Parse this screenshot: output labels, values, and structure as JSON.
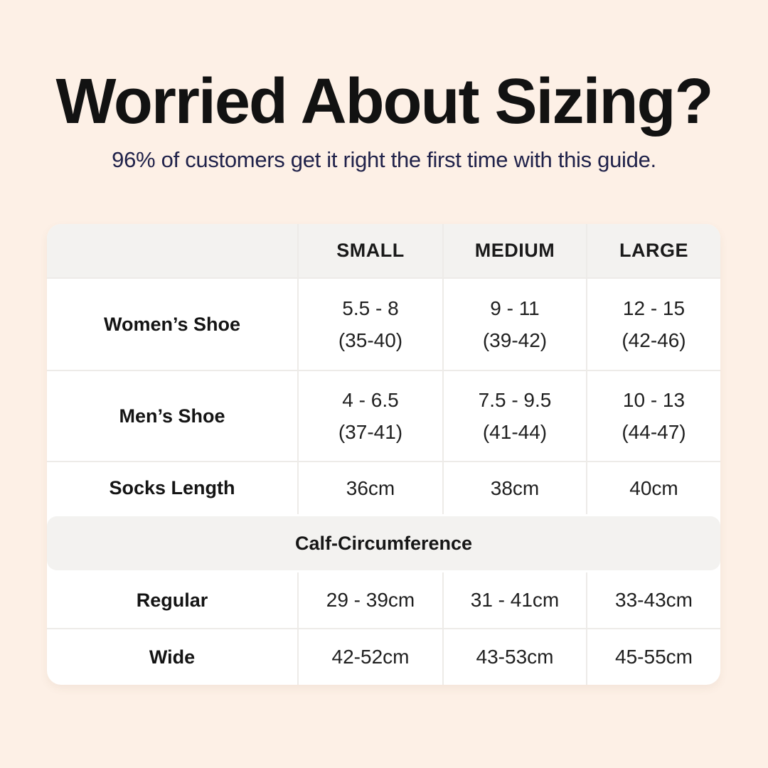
{
  "page": {
    "title": "Worried About Sizing?",
    "subtitle": "96% of customers get it right the first time with this guide.",
    "colors": {
      "background": "#fdf0e6",
      "title": "#121212",
      "subtitle": "#20224a",
      "table_background": "#ffffff",
      "header_band_background": "#f3f2f0",
      "grid_line": "#edebe8"
    }
  },
  "table": {
    "headers": [
      {
        "label": ""
      },
      {
        "label": "SMALL"
      },
      {
        "label": "MEDIUM"
      },
      {
        "label": "LARGE"
      }
    ],
    "shoe_rows": [
      {
        "label": "Women’s Shoe",
        "cells": [
          {
            "line1": "5.5 - 8",
            "line2": "(35-40)"
          },
          {
            "line1": "9 - 11",
            "line2": "(39-42)"
          },
          {
            "line1": "12 - 15",
            "line2": "(42-46)"
          }
        ]
      },
      {
        "label": "Men’s Shoe",
        "cells": [
          {
            "line1": "4 - 6.5",
            "line2": "(37-41)"
          },
          {
            "line1": "7.5 - 9.5",
            "line2": "(41-44)"
          },
          {
            "line1": "10 - 13",
            "line2": "(44-47)"
          }
        ]
      },
      {
        "label": "Socks Length",
        "cells": [
          {
            "line1": "36cm"
          },
          {
            "line1": "38cm"
          },
          {
            "line1": "40cm"
          }
        ]
      }
    ],
    "section_header": "Calf-Circumference",
    "calf_rows": [
      {
        "label": "Regular",
        "cells": [
          {
            "line1": "29 - 39cm"
          },
          {
            "line1": "31 - 41cm"
          },
          {
            "line1": "33-43cm"
          }
        ]
      },
      {
        "label": "Wide",
        "cells": [
          {
            "line1": "42-52cm"
          },
          {
            "line1": "43-53cm"
          },
          {
            "line1": "45-55cm"
          }
        ]
      }
    ]
  },
  "chart_data": {
    "type": "table",
    "title": "Worried About Sizing?",
    "subtitle": "96% of customers get it right the first time with this guide.",
    "columns": [
      "",
      "SMALL",
      "MEDIUM",
      "LARGE"
    ],
    "rows": [
      [
        "Women’s Shoe",
        "5.5 - 8 (35-40)",
        "9 - 11 (39-42)",
        "12 - 15 (42-46)"
      ],
      [
        "Men’s Shoe",
        "4 - 6.5 (37-41)",
        "7.5 - 9.5 (41-44)",
        "10 - 13 (44-47)"
      ],
      [
        "Socks Length",
        "36cm",
        "38cm",
        "40cm"
      ],
      [
        "Calf-Circumference",
        "",
        "",
        ""
      ],
      [
        "Regular",
        "29 - 39cm",
        "31 - 41cm",
        "33-43cm"
      ],
      [
        "Wide",
        "42-52cm",
        "43-53cm",
        "45-55cm"
      ]
    ]
  }
}
